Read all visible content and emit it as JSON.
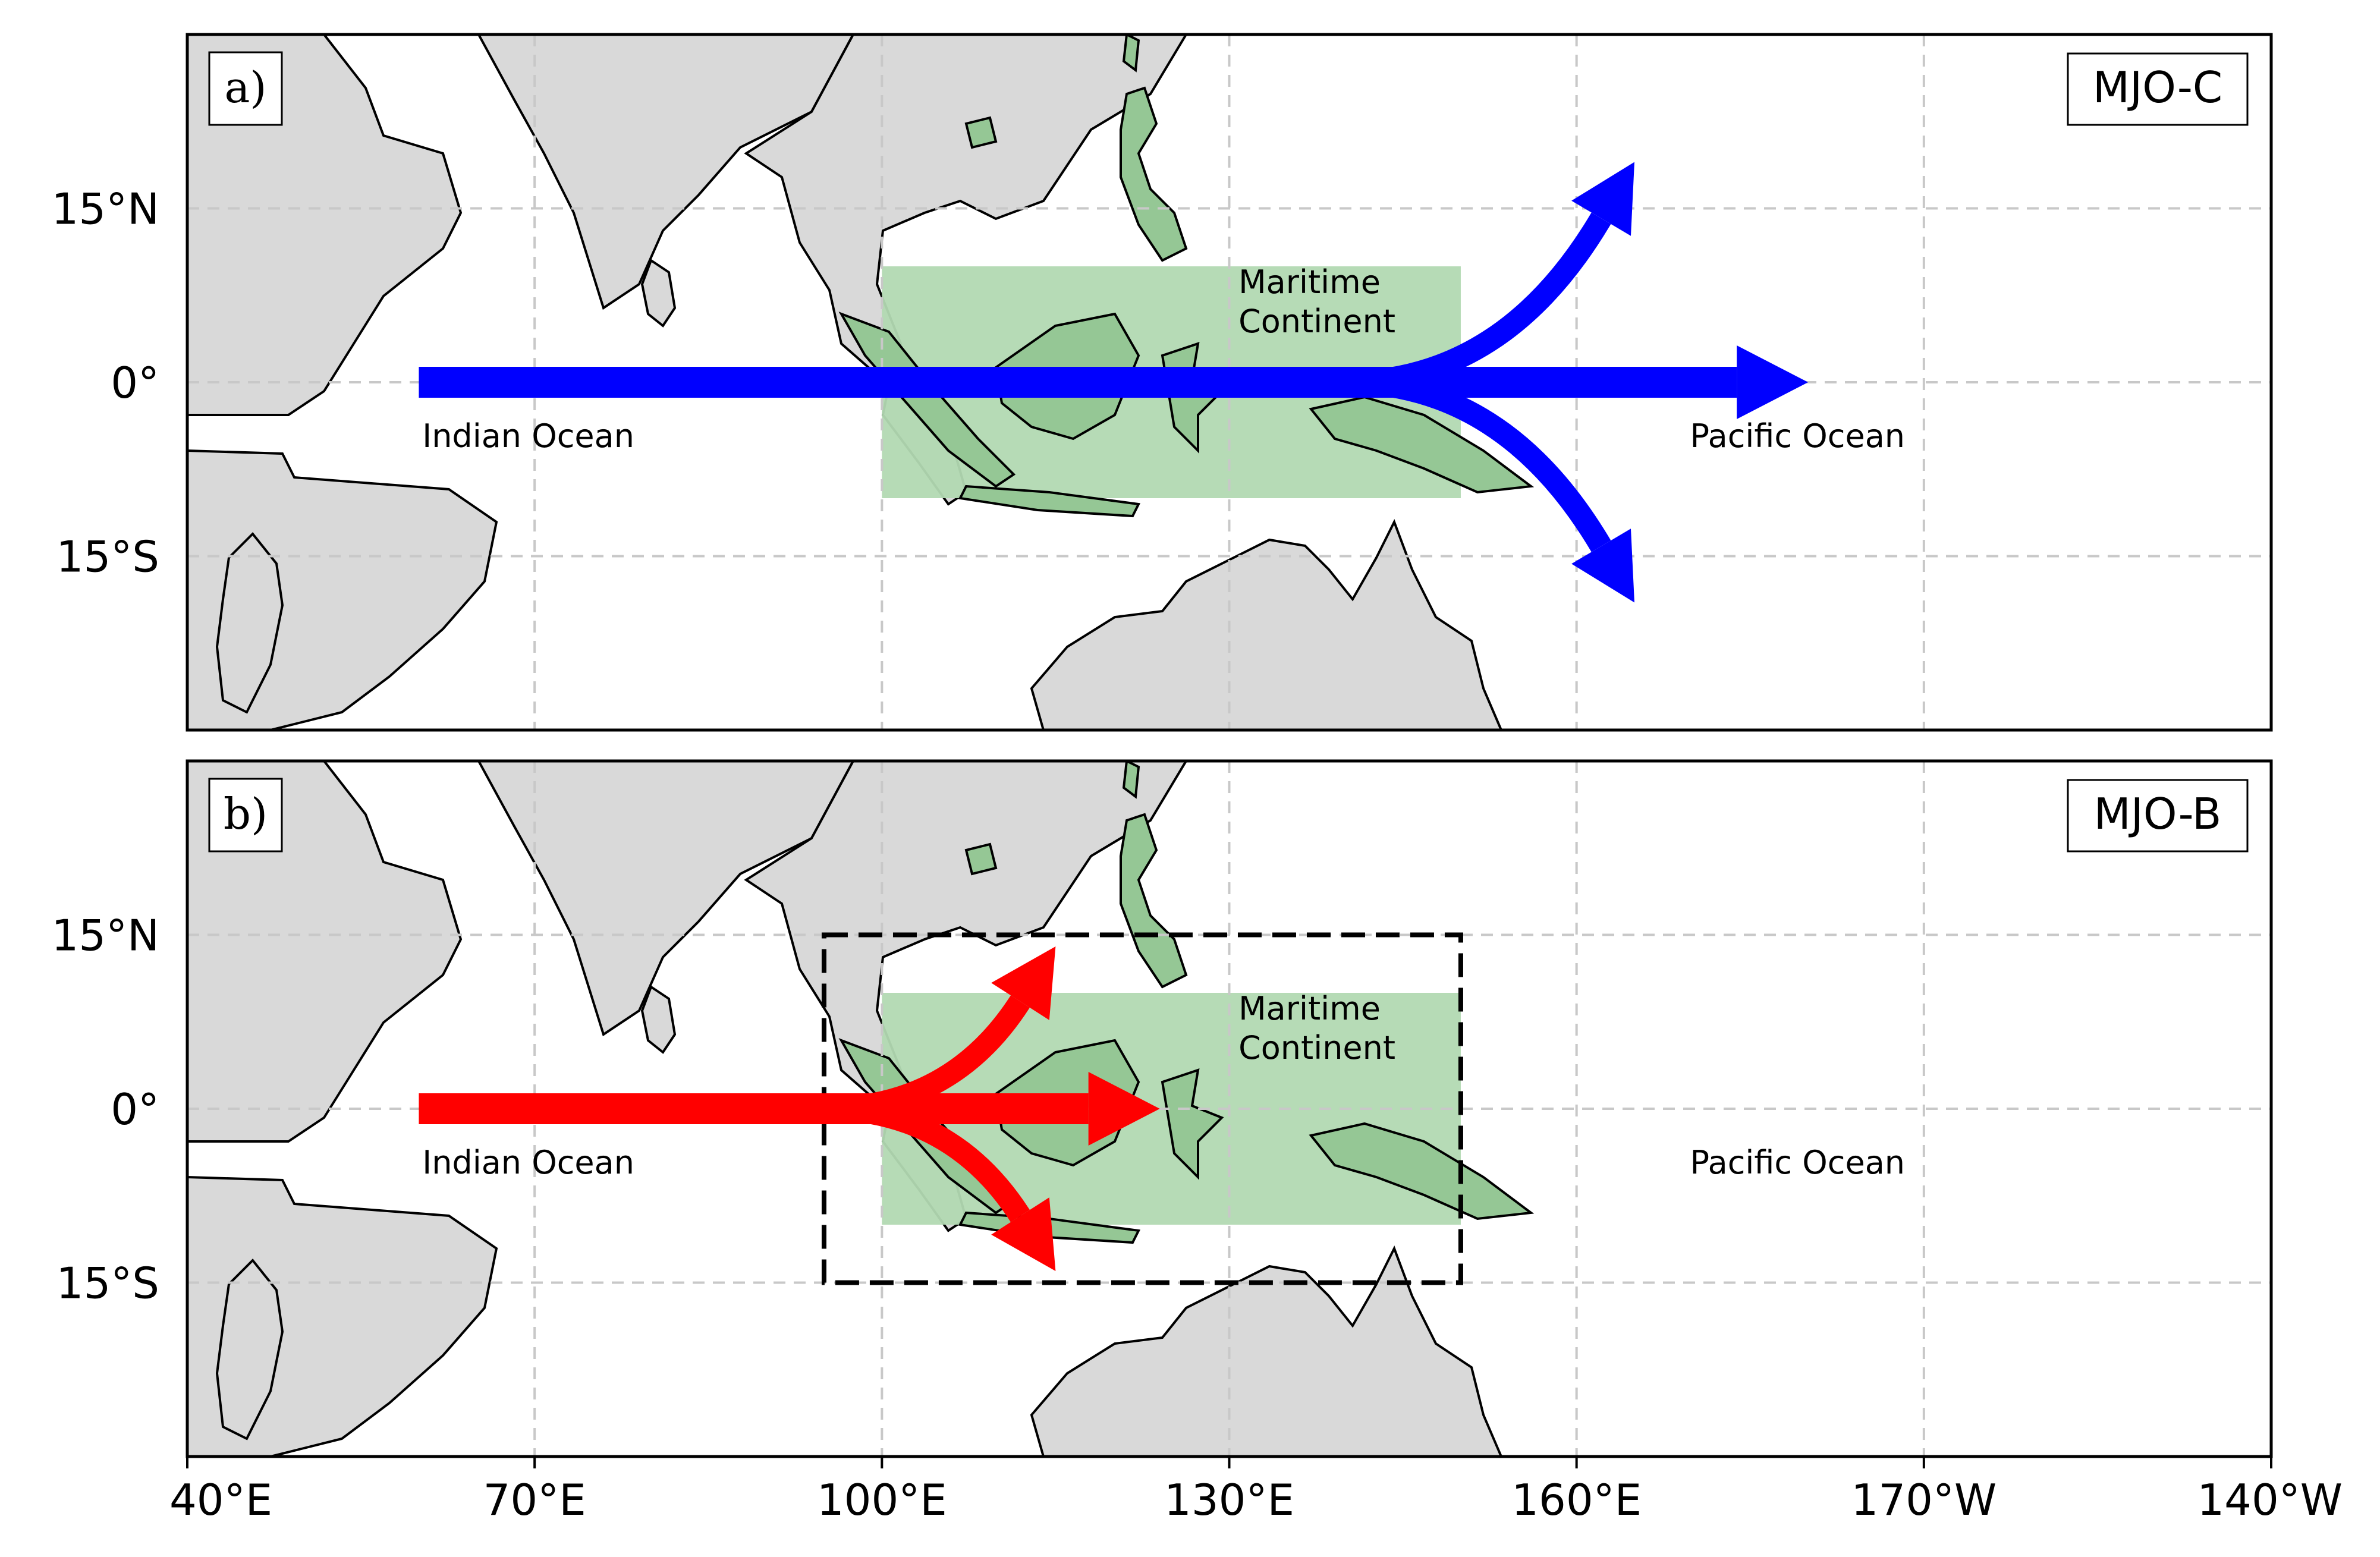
{
  "panels": [
    {
      "id": "a",
      "label": "a)",
      "tag": "MJO-C",
      "arrow_color": "#0000ff",
      "arrows": [
        {
          "from": [
            60,
            0
          ],
          "to": [
            180,
            0
          ]
        },
        {
          "from": [
            140,
            0
          ],
          "to": [
            165,
            19
          ],
          "curve": "north"
        },
        {
          "from": [
            140,
            0
          ],
          "to": [
            165,
            -19
          ],
          "curve": "south"
        }
      ],
      "box": null
    },
    {
      "id": "b",
      "label": "b)",
      "tag": "MJO-B",
      "arrow_color": "#ff0000",
      "arrows": [
        {
          "from": [
            60,
            0
          ],
          "to": [
            124,
            0
          ]
        },
        {
          "from": [
            95,
            0
          ],
          "to": [
            115,
            14
          ],
          "curve": "north"
        },
        {
          "from": [
            95,
            0
          ],
          "to": [
            115,
            -14
          ],
          "curve": "south"
        }
      ],
      "box": {
        "lon": [
          95,
          150
        ],
        "lat": [
          -15,
          15
        ],
        "style": "dashed"
      }
    }
  ],
  "regions": {
    "maritime_continent": {
      "line1": "Maritime",
      "line2": "Continent",
      "lon": [
        100,
        150
      ],
      "lat": [
        -10,
        10
      ],
      "color": "#b2d9b2"
    },
    "indian_ocean": "Indian Ocean",
    "pacific_ocean": "Pacific Ocean"
  },
  "axis": {
    "lat_ticks": [
      "15°N",
      "0°",
      "15°S"
    ],
    "lat_values": [
      15,
      0,
      -15
    ],
    "lon_ticks": [
      "40°E",
      "70°E",
      "100°E",
      "130°E",
      "160°E",
      "170°W",
      "140°W"
    ],
    "lon_values": [
      40,
      70,
      100,
      130,
      160,
      190,
      220
    ],
    "lon_range": [
      40,
      220
    ],
    "lat_range": [
      -30,
      30
    ]
  },
  "colors": {
    "land": "#d9d9d9",
    "coast": "#000000",
    "grid": "#c8c8c8"
  }
}
